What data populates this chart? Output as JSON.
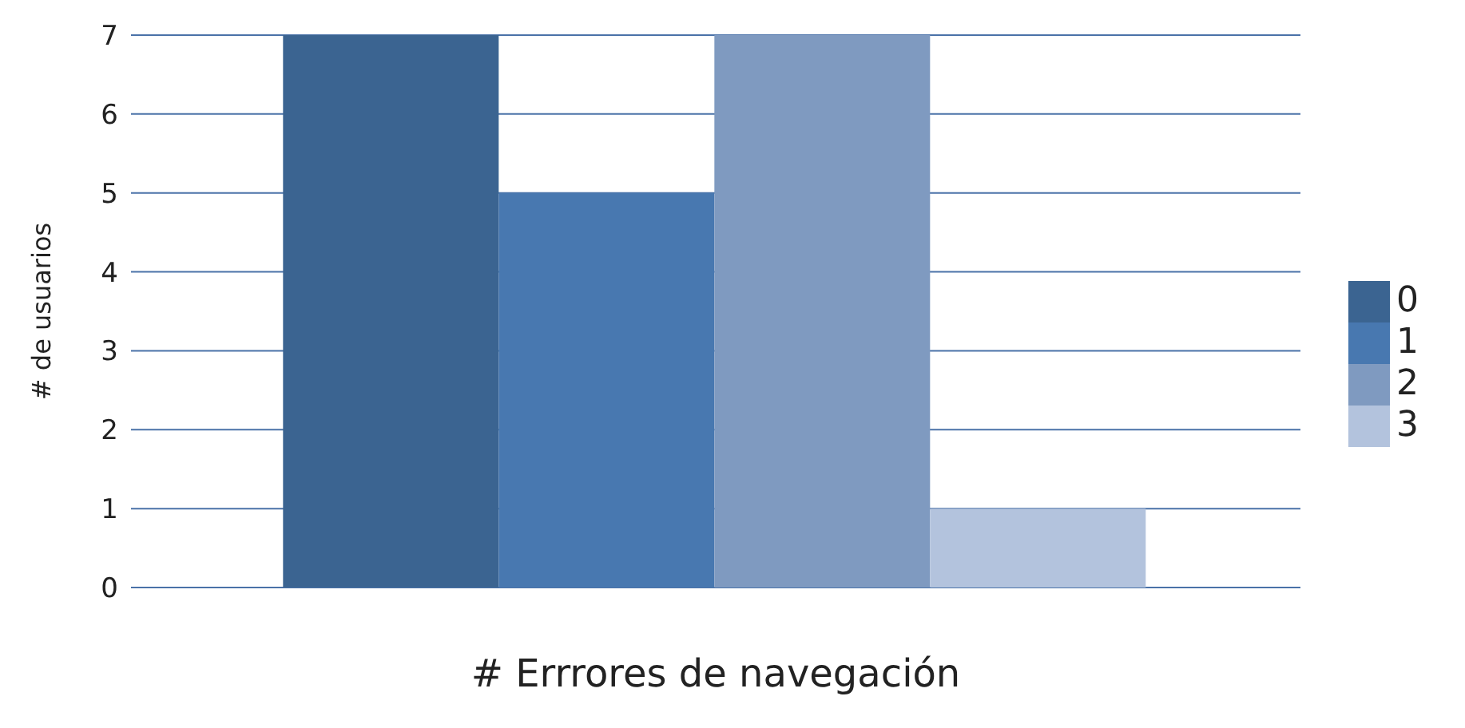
{
  "chart_data": {
    "type": "bar",
    "xlabel": "# Errrores de navegación",
    "ylabel": "# de usuarios",
    "categories": [
      null
    ],
    "series": [
      {
        "name": "0",
        "color": "#3b6491",
        "values": [
          7
        ]
      },
      {
        "name": "1",
        "color": "#4878b0",
        "values": [
          5
        ]
      },
      {
        "name": "2",
        "color": "#7f9ac0",
        "values": [
          7
        ]
      },
      {
        "name": "3",
        "color": "#b3c3dd",
        "values": [
          1
        ]
      }
    ],
    "ylim": [
      0,
      7
    ],
    "yticks": [
      0,
      1,
      2,
      3,
      4,
      5,
      6,
      7
    ],
    "grid": "y",
    "legend": "right",
    "tick_labels": "y"
  }
}
